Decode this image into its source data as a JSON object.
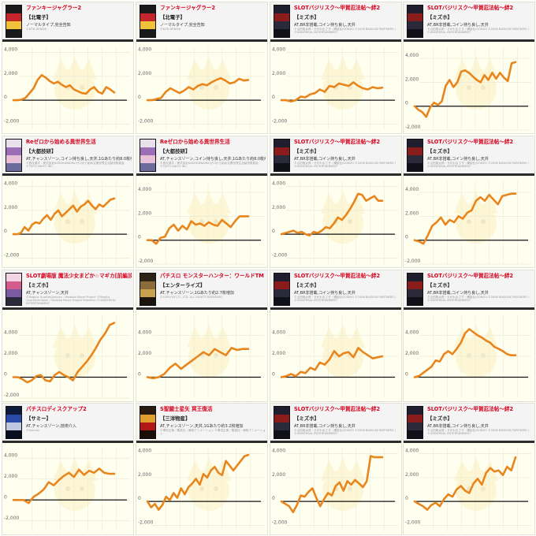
{
  "panels": [
    {
      "title": "ファンキージャグラー2",
      "maker": "【北電子】",
      "type": "ノーマルタイプ,完全告知",
      "copy": "©KITA DENSHI",
      "thumb": "funky",
      "chart_data": {
        "type": "line",
        "ylim": [
          -2500,
          4500
        ],
        "yticks": [
          "4,000",
          "2,000",
          "0",
          "-2,000"
        ],
        "series": [
          {
            "values": [
              0,
              0,
              50,
              200,
              600,
              1000,
              1700,
              2100,
              1900,
              1600,
              1400,
              1550,
              1300,
              1100,
              1250,
              900,
              750,
              600,
              550,
              900,
              1100,
              700,
              550,
              1100,
              900,
              650
            ]
          }
        ]
      }
    },
    {
      "title": "ファンキージャグラー2",
      "maker": "【北電子】",
      "type": "ノーマルタイプ,完全告知",
      "copy": "©KITA DENSHI",
      "thumb": "funky",
      "chart_data": {
        "type": "line",
        "ylim": [
          -2500,
          4500
        ],
        "yticks": [
          "4,000",
          "2,000",
          "0",
          "-2,000"
        ],
        "series": [
          {
            "values": [
              0,
              0,
              100,
              200,
              700,
              1000,
              800,
              600,
              800,
              1100,
              900,
              1200,
              1350,
              1250,
              1500,
              1700,
              1850,
              1650,
              1400,
              1500,
              1800,
              1650,
              1700
            ]
          }
        ]
      }
    },
    {
      "title": "SLOTバジリスク〜甲賀忍法帖〜絆2",
      "maker": "【ミズホ】",
      "type": "AT,BR非搭載,コイン持ち良し,天井",
      "copy": "©山田風太郎・せがわまさき・講談社/GONZO ©2006 BASILISK PARTNERS / ©UNIVERSAL ENTERTAINMENT",
      "thumb": "basilisk",
      "chart_data": {
        "type": "line",
        "ylim": [
          -2500,
          4500
        ],
        "yticks": [
          "4,000",
          "2,000",
          "0",
          "-2,000"
        ],
        "series": [
          {
            "values": [
              0,
              0,
              -100,
              0,
              300,
              250,
              500,
              600,
              900,
              700,
              1200,
              1100,
              1400,
              1300,
              1200,
              1500,
              1200,
              1000,
              900,
              1100,
              1000,
              1050
            ]
          }
        ]
      }
    },
    {
      "title": "SLOTバジリスク〜甲賀忍法帖〜絆2",
      "maker": "【ミズホ】",
      "type": "AT,BR非搭載,コイン持ち良し,天井",
      "copy": "©山田風太郎・せがわまさき・講談社/GONZO ©2006 BASILISK PARTNERS / ©UNIVERSAL ENTERTAINMENT",
      "thumb": "basilisk",
      "chart_data": {
        "type": "line",
        "ylim": [
          -2000,
          5000
        ],
        "yticks": [
          "4,000",
          "2,000",
          "0",
          "-2,000"
        ],
        "series": [
          {
            "values": [
              0,
              -300,
              -500,
              -900,
              -100,
              300,
              100,
              400,
              1700,
              2200,
              1600,
              2000,
              2900,
              3000,
              2800,
              2500,
              2200,
              2000,
              2600,
              2200,
              2800,
              2300,
              2800,
              2400,
              2100,
              3600,
              3700
            ]
          }
        ]
      }
    },
    {
      "title": "Reゼロから始める異世界生活",
      "maker": "【大都技研】",
      "type": "AT,チャンスゾーン,コイン持ち良し,天井,1Gあたり約8.0枚増加",
      "copy": "©長月達平・株式会社KADOKAWA/Re:ゼロから始める異世界生活製作委員会 ©TAITO DAITO INC.",
      "thumb": "rezero",
      "chart_data": {
        "type": "line",
        "ylim": [
          -2500,
          4500
        ],
        "yticks": [
          "4,000",
          "2,000",
          "0",
          "-2,000"
        ],
        "series": [
          {
            "values": [
              0,
              0,
              100,
              600,
              300,
              800,
              1000,
              900,
              1300,
              1600,
              1200,
              1700,
              2000,
              1500,
              1800,
              2100,
              2400,
              1900,
              2300,
              2500,
              2800,
              2400,
              2100,
              2500,
              2300,
              2600,
              2900,
              3000
            ]
          }
        ]
      }
    },
    {
      "title": "Reゼロから始める異世界生活",
      "maker": "【大都技研】",
      "type": "AT,チャンスゾーン,コイン持ち良し,天井,1Gあたり約8.0枚増加",
      "copy": "©長月達平・株式会社KADOKAWA/Re:ゼロから始める異世界生活製作委員会 ©TAITO DAITO INC.",
      "thumb": "rezero",
      "chart_data": {
        "type": "line",
        "ylim": [
          -2000,
          5000
        ],
        "yticks": [
          "4,000",
          "2,000",
          "0",
          "-2,000"
        ],
        "series": [
          {
            "values": [
              0,
              0,
              -300,
              200,
              300,
              1000,
              1300,
              800,
              1200,
              900,
              1600,
              1300,
              1400,
              1200,
              1500,
              1300,
              1200,
              1700,
              1400,
              1100,
              1600,
              2000,
              2000,
              2000
            ]
          }
        ]
      }
    },
    {
      "title": "SLOTバジリスク〜甲賀忍法帖〜絆2",
      "maker": "【ミズホ】",
      "type": "AT,BR非搭載,コイン持ち良し,天井",
      "copy": "©山田風太郎・せがわまさき・講談社/GONZO ©2006 BASILISK PARTNERS / ©UNIVERSAL ENTERTAINMENT",
      "thumb": "basilisk",
      "chart_data": {
        "type": "line",
        "ylim": [
          -2500,
          4500
        ],
        "yticks": [
          "4,000",
          "2,000",
          "0",
          "-2,000"
        ],
        "series": [
          {
            "values": [
              0,
              100,
              200,
              300,
              100,
              200,
              0,
              -100,
              200,
              100,
              300,
              600,
              500,
              900,
              1400,
              1200,
              1600,
              2100,
              2700,
              3400,
              3300,
              2800,
              3000,
              3200,
              2800,
              2800
            ]
          }
        ]
      }
    },
    {
      "title": "SLOTバジリスク〜甲賀忍法帖〜絆2",
      "maker": "【ミズホ】",
      "type": "AT,BR非搭載,コイン持ち良し,天井",
      "copy": "©山田風太郎・せがわまさき・講談社/GONZO ©2006 BASILISK PARTNERS / ©UNIVERSAL ENTERTAINMENT",
      "thumb": "basilisk",
      "chart_data": {
        "type": "line",
        "ylim": [
          -2000,
          5000
        ],
        "yticks": [
          "4,000",
          "2,000",
          "0",
          "-2,000"
        ],
        "series": [
          {
            "values": [
              0,
              -100,
              -300,
              400,
              1200,
              1500,
              1900,
              1300,
              1700,
              1500,
              2000,
              1800,
              2300,
              2500,
              3300,
              3600,
              3300,
              3800,
              3400,
              3000,
              3700,
              3800,
              3900,
              3900
            ]
          }
        ]
      }
    },
    {
      "title": "SLOT劇場版 魔法少女まどか☆マギカ[前編]始まりの物語／[後編]永遠の物語",
      "maker": "【ミズホ】",
      "type": "AT,チャンスゾーン,天井",
      "copy": "©Magica Quartet/Aniplex・Madoka Movie Project ©Magica Quartet/Aniplex・Madoka Movie Project Rebellion ©UNIVERSAL ENTERTAINMENT",
      "thumb": "madoka",
      "chart_data": {
        "type": "line",
        "ylim": [
          -2000,
          6000
        ],
        "yticks": [
          "4,000",
          "2,000",
          "0",
          "-2,000"
        ],
        "series": [
          {
            "values": [
              0,
              0,
              -200,
              -500,
              -300,
              100,
              200,
              -300,
              -400,
              200,
              500,
              200,
              0,
              -300,
              500,
              1000,
              1500,
              2100,
              2800,
              3600,
              4200,
              5000,
              5200
            ]
          }
        ]
      }
    },
    {
      "title": "パチスロ モンスターハンター：ワールドTM 黄金狩猟",
      "maker": "【エンターライズ】",
      "type": "AT,チャンスゾーン,1Gあたり約2.7枚増加",
      "copy": "©CAPCOM CO., LTD. ALL RIGHTS RESERVED",
      "thumb": "monhun",
      "chart_data": {
        "type": "line",
        "ylim": [
          -2000,
          6000
        ],
        "yticks": [
          "4,000",
          "2,000",
          "0"
        ],
        "series": [
          {
            "values": [
              0,
              -100,
              0,
              300,
              900,
              1300,
              800,
              1200,
              1600,
              2000,
              2400,
              2100,
              2700,
              2400,
              2100,
              2800,
              2600,
              2700,
              2700
            ]
          }
        ]
      }
    },
    {
      "title": "SLOTバジリスク〜甲賀忍法帖〜絆2",
      "maker": "【ミズホ】",
      "type": "AT,BR非搭載,コイン持ち良し,天井",
      "copy": "©山田風太郎・せがわまさき・講談社/GONZO ©2006 BASILISK PARTNERS / ©UNIVERSAL ENTERTAINMENT",
      "thumb": "basilisk",
      "chart_data": {
        "type": "line",
        "ylim": [
          -2000,
          6000
        ],
        "yticks": [
          "4,000",
          "2,000",
          "0"
        ],
        "series": [
          {
            "values": [
              0,
              100,
              300,
              100,
              500,
              400,
              900,
              700,
              1400,
              1200,
              1700,
              2500,
              2000,
              2300,
              2400,
              1900,
              2800,
              2400,
              2100,
              1800,
              1900,
              2000
            ]
          }
        ]
      }
    },
    {
      "title": "SLOTバジリスク〜甲賀忍法帖〜絆2",
      "maker": "【ミズホ】",
      "type": "AT,BR非搭載,コイン持ち良し,天井",
      "copy": "©山田風太郎・せがわまさき・講談社/GONZO ©2006 BASILISK PARTNERS / ©UNIVERSAL ENTERTAINMENT",
      "thumb": "basilisk",
      "chart_data": {
        "type": "line",
        "ylim": [
          -2000,
          6000
        ],
        "yticks": [
          "4,000",
          "2,000",
          "0"
        ],
        "series": [
          {
            "values": [
              0,
              100,
              400,
              700,
              1000,
              1600,
              1500,
              2200,
              2500,
              2200,
              2700,
              3300,
              4200,
              4600,
              4300,
              4000,
              3800,
              3500,
              3300,
              2900,
              2700,
              2500,
              2200,
              2100,
              2100
            ]
          }
        ]
      }
    },
    {
      "title": "パチスロディスクアップ2",
      "maker": "【サミー】",
      "type": "AT,チャンスゾーン,技術介入",
      "copy": "©Sammy",
      "thumb": "disc",
      "chart_data": {
        "type": "line",
        "ylim": [
          -3000,
          5000
        ],
        "yticks": [
          "4,000",
          "2,000",
          "0",
          "-2,000"
        ],
        "series": [
          {
            "values": [
              0,
              0,
              0,
              -300,
              300,
              600,
              1000,
              1700,
              1400,
              1900,
              2300,
              2600,
              2200,
              2900,
              2400,
              2800,
              2600,
              3000,
              2600,
              2500,
              2500
            ]
          }
        ]
      }
    },
    {
      "title": "S聖闘士星矢 冥王復活",
      "maker": "【三洋物産】",
      "type": "AT,チャンスゾーン,天井,1Gあたり約3.2枚増加",
      "copy": "©車田正美／集英社・東映アニメーション ©車田正美／集英社・東映アニメーション",
      "thumb": "seiya",
      "chart_data": {
        "type": "line",
        "ylim": [
          -2500,
          4500
        ],
        "yticks": [
          "4,000",
          "2,000",
          "0",
          "-2,000"
        ],
        "series": [
          {
            "values": [
              0,
              -500,
              -200,
              -700,
              -300,
              400,
              100,
              700,
              300,
              1100,
              600,
              1200,
              1500,
              1900,
              1400,
              2300,
              2000,
              2600,
              2900,
              2400,
              2200,
              3400,
              3000,
              2600,
              3000,
              3400,
              3800,
              3900
            ]
          }
        ]
      }
    },
    {
      "title": "SLOTバジリスク〜甲賀忍法帖〜絆2",
      "maker": "【ミズホ】",
      "type": "AT,BR非搭載,コイン持ち良し,天井",
      "copy": "©山田風太郎・せがわまさき・講談社/GONZO ©2006 BASILISK PARTNERS / ©UNIVERSAL ENTERTAINMENT",
      "thumb": "basilisk",
      "chart_data": {
        "type": "line",
        "ylim": [
          -2500,
          4500
        ],
        "yticks": [
          "4,000",
          "2,000",
          "0",
          "-2,000"
        ],
        "series": [
          {
            "values": [
              0,
              -200,
              -400,
              -900,
              -300,
              500,
              400,
              800,
              1100,
              300,
              -400,
              200,
              700,
              500,
              1300,
              1600,
              900,
              1700,
              1400,
              1800,
              1500,
              1200,
              1700,
              3800,
              3700,
              3700,
              3700
            ]
          }
        ]
      }
    },
    {
      "title": "SLOTバジリスク〜甲賀忍法帖〜絆2",
      "maker": "【ミズホ】",
      "type": "AT,BR非搭載,コイン持ち良し,天井",
      "copy": "©山田風太郎・せがわまさき・講談社/GONZO ©2006 BASILISK PARTNERS / ©UNIVERSAL ENTERTAINMENT",
      "thumb": "basilisk",
      "chart_data": {
        "type": "line",
        "ylim": [
          -2500,
          4500
        ],
        "yticks": [
          "4,000",
          "2,000",
          "0",
          "-2,000"
        ],
        "series": [
          {
            "values": [
              0,
              -200,
              -400,
              -700,
              -300,
              -100,
              -400,
              200,
              600,
              400,
              1000,
              1300,
              900,
              700,
              1500,
              1900,
              1400,
              2400,
              2800,
              2500,
              2600,
              2200,
              2900,
              2600,
              3700
            ]
          }
        ]
      }
    }
  ],
  "colors": {
    "line": "#e8851c",
    "zero": "#111111",
    "grid": "#ecebd8",
    "bg": "#fffff0",
    "title": "#d7001b"
  }
}
